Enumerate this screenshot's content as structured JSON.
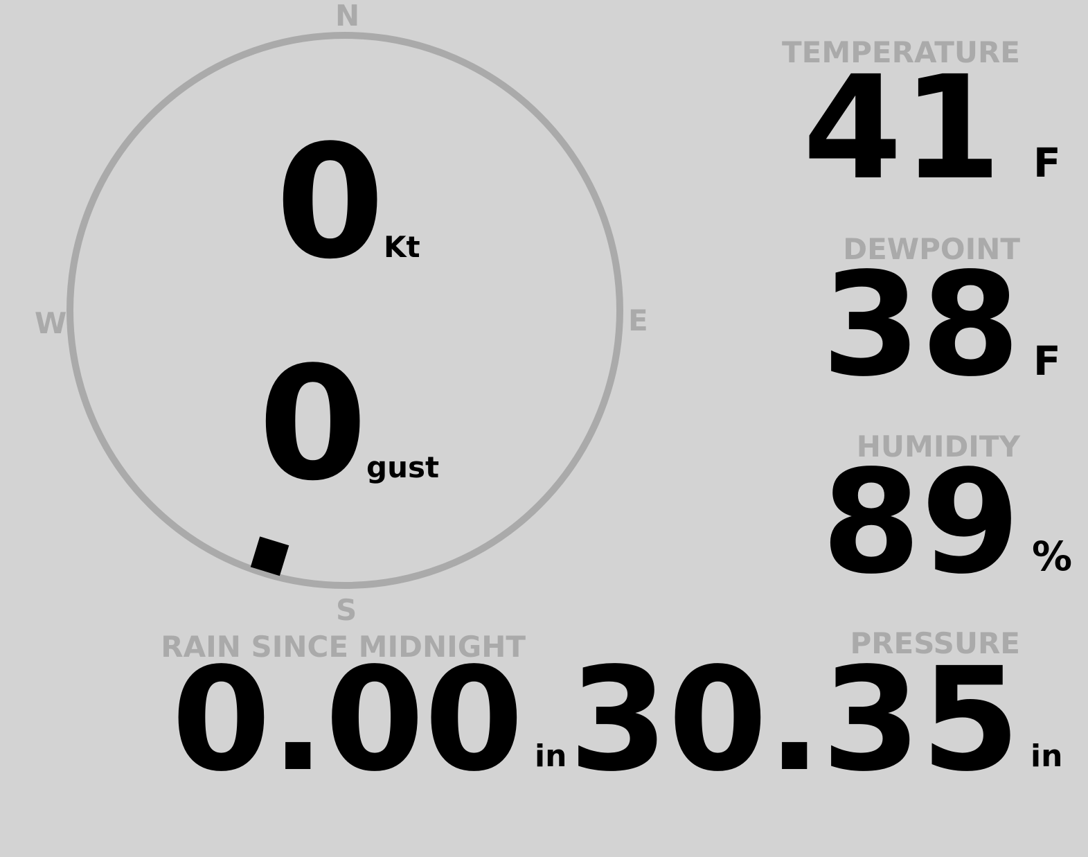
{
  "colors": {
    "background": "#d3d3d3",
    "label": "#aaaaaa",
    "value": "#000000",
    "compass_ring": "#aaaaaa"
  },
  "wind": {
    "cardinals": {
      "n": "N",
      "e": "E",
      "s": "S",
      "w": "W"
    },
    "speed": "0",
    "speed_unit": "Kt",
    "gust": "0",
    "gust_unit": "gust",
    "direction_deg": 197
  },
  "temperature": {
    "label": "TEMPERATURE",
    "value": "41",
    "unit": "F"
  },
  "dewpoint": {
    "label": "DEWPOINT",
    "value": "38",
    "unit": "F"
  },
  "humidity": {
    "label": "HUMIDITY",
    "value": "89",
    "unit": "%"
  },
  "rain": {
    "label": "RAIN SINCE MIDNIGHT",
    "value": "0.00",
    "unit": "in"
  },
  "pressure": {
    "label": "PRESSURE",
    "value": "30.35",
    "unit": "in"
  }
}
